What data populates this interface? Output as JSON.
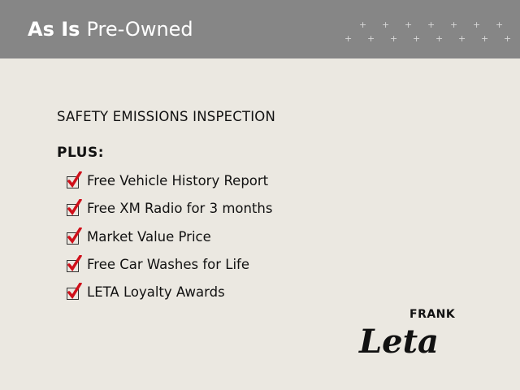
{
  "header": {
    "title_bold": "As Is",
    "title_rest": "Pre-Owned"
  },
  "content": {
    "heading": "SAFETY EMISSIONS INSPECTION",
    "plus_label": "PLUS:",
    "items": [
      {
        "label": "Free Vehicle History Report",
        "checked": true
      },
      {
        "label": "Free XM Radio for 3 months",
        "checked": true
      },
      {
        "label": "Market Value Price",
        "checked": true
      },
      {
        "label": "Free Car Washes for Life",
        "checked": true
      },
      {
        "label": "LETA Loyalty Awards",
        "checked": true
      }
    ]
  },
  "logo": {
    "top": "FRANK",
    "script": "Leta"
  },
  "colors": {
    "header": "#868686",
    "check": "#d0101a",
    "background": "#ebe8e1"
  }
}
